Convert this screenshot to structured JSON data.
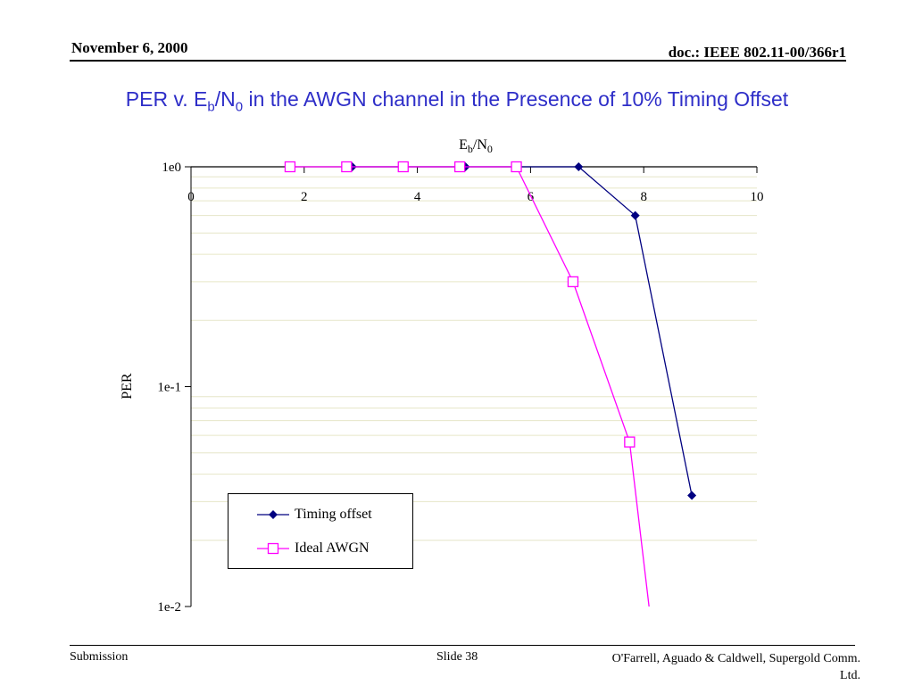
{
  "header": {
    "date": "November 6, 2000",
    "doc": "doc.: IEEE 802.11-00/366r1"
  },
  "title": {
    "prefix": "PER v. E",
    "sub1": "b",
    "mid": "/N",
    "sub2": "0",
    "suffix": " in the AWGN channel in the Presence of 10% Timing Offset"
  },
  "footer": {
    "left": "Submission",
    "center": "Slide 38",
    "right_line1": "O'Farrell, Aguado & Caldwell, Supergold Comm.",
    "right_line2": "Ltd."
  },
  "chart_data": {
    "type": "line",
    "title": "",
    "xlabel": "Eb/N0",
    "xlabel_parts": {
      "main": "E",
      "sub1": "b",
      "mid": "/N",
      "sub2": "0"
    },
    "ylabel": "PER",
    "xlim": [
      0,
      10
    ],
    "x_ticks": [
      "0",
      "2",
      "4",
      "6",
      "8",
      "10"
    ],
    "y_scale": "log",
    "ylim": [
      0.01,
      1
    ],
    "y_tick_labels": [
      "1e0",
      "1e-1",
      "1e-2"
    ],
    "y_tick_values": [
      1,
      0.1,
      0.01
    ],
    "grid": "horizontal minor",
    "legend_position": "lower-left",
    "series": [
      {
        "name": "Timing offset",
        "color": "#000080",
        "marker": "diamond-filled",
        "x": [
          2.85,
          4.85,
          6.85,
          7.85,
          8.85
        ],
        "y": [
          1,
          1,
          1,
          0.6,
          0.032
        ]
      },
      {
        "name": "Ideal AWGN",
        "color": "#ff00ff",
        "marker": "square-open",
        "x": [
          1.75,
          2.75,
          3.75,
          4.75,
          5.75,
          6.75,
          7.75,
          8.1
        ],
        "y": [
          1,
          1,
          1,
          1,
          1,
          0.3,
          0.056,
          0.0097
        ]
      }
    ]
  }
}
